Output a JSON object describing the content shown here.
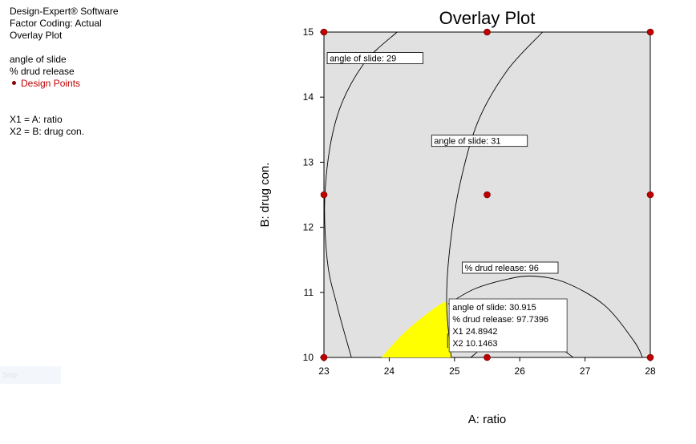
{
  "info": {
    "line1": "Design-Expert® Software",
    "line2": "Factor Coding: Actual",
    "line3": "Overlay Plot",
    "resp1": "angle of slide",
    "resp2": "% drud release",
    "design_points": "Design Points",
    "x1": "X1 = A: ratio",
    "x2": "X2 = B: drug con."
  },
  "ghost_label": "Snip",
  "chart_data": {
    "type": "contour",
    "title": "Overlay Plot",
    "xlabel": "A: ratio",
    "ylabel": "B: drug con.",
    "xlim": [
      23,
      28
    ],
    "ylim": [
      10,
      15
    ],
    "xticks": [
      "23",
      "24",
      "25",
      "26",
      "27",
      "28"
    ],
    "yticks": [
      "10",
      "11",
      "12",
      "13",
      "14",
      "15"
    ],
    "colors": {
      "plot_bg": "#e1e1e1",
      "design_point": "#c00000",
      "feasible": "#ffff00"
    },
    "design_points": [
      {
        "x": 23,
        "y": 15
      },
      {
        "x": 25.5,
        "y": 15
      },
      {
        "x": 28,
        "y": 15
      },
      {
        "x": 23,
        "y": 12.5
      },
      {
        "x": 25.5,
        "y": 12.5
      },
      {
        "x": 28,
        "y": 12.5
      },
      {
        "x": 23,
        "y": 10
      },
      {
        "x": 25.5,
        "y": 10
      },
      {
        "x": 28,
        "y": 10
      }
    ],
    "contours": [
      {
        "name": "angle-slide-29",
        "label": "angle of slide: 29",
        "points": [
          [
            24.12,
            15
          ],
          [
            23.6,
            14.5
          ],
          [
            23.2,
            13.7
          ],
          [
            23.02,
            12.6
          ],
          [
            23.05,
            11.5
          ],
          [
            23.2,
            10.8
          ],
          [
            23.42,
            10
          ]
        ]
      },
      {
        "name": "angle-slide-31",
        "label": "angle of slide: 31",
        "points": [
          [
            26.35,
            15
          ],
          [
            25.8,
            14.4
          ],
          [
            25.35,
            13.6
          ],
          [
            25.07,
            12.6
          ],
          [
            24.92,
            11.6
          ],
          [
            24.88,
            10.8
          ],
          [
            24.95,
            10
          ]
        ]
      },
      {
        "name": "drug-release-96",
        "label": "% drud release: 96",
        "points": [
          [
            24.9,
            10.82
          ],
          [
            25.3,
            11.05
          ],
          [
            25.8,
            11.2
          ],
          [
            26.2,
            11.25
          ],
          [
            26.7,
            11.15
          ],
          [
            27.3,
            10.8
          ],
          [
            27.75,
            10.25
          ],
          [
            27.88,
            10
          ]
        ]
      },
      {
        "name": "drug-release-lower",
        "label": "",
        "points": [
          [
            25.25,
            10
          ],
          [
            25.5,
            10.18
          ],
          [
            25.9,
            10.28
          ],
          [
            26.3,
            10.25
          ],
          [
            26.6,
            10.15
          ],
          [
            26.82,
            10
          ]
        ]
      }
    ],
    "feasible_region": [
      [
        23.88,
        10
      ],
      [
        24.2,
        10.35
      ],
      [
        24.55,
        10.65
      ],
      [
        24.87,
        10.85
      ],
      [
        24.88,
        10.6
      ],
      [
        24.92,
        10.3
      ],
      [
        24.95,
        10
      ]
    ],
    "flag": {
      "x": 24.8942,
      "y": 10.1463,
      "lines": [
        "angle of slide:  30.915",
        "% drud release:   97.7396",
        "X1  24.8942",
        "X2  10.1463"
      ]
    }
  }
}
